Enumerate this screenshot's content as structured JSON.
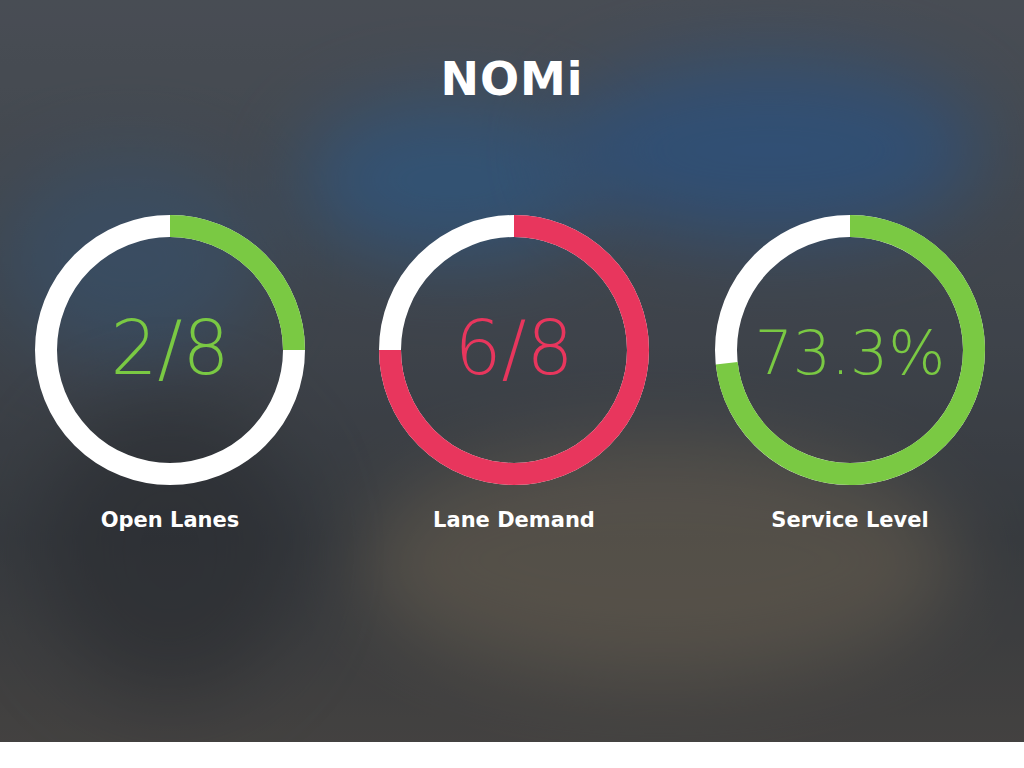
{
  "header": {
    "logo": "NOMi"
  },
  "chart_data": [
    {
      "type": "gauge",
      "title": "Open Lanes",
      "values": [
        2
      ],
      "value_labels": [
        "2/8"
      ],
      "ylim": [
        0,
        8
      ],
      "color": "#7ac943"
    },
    {
      "type": "gauge",
      "title": "Lane Demand",
      "values": [
        6
      ],
      "value_labels": [
        "6/8"
      ],
      "ylim": [
        0,
        8
      ],
      "color": "#e8365d"
    },
    {
      "type": "gauge",
      "title": "Service Level",
      "values": [
        73.3
      ],
      "value_labels": [
        "73.3%"
      ],
      "ylim": [
        0,
        100
      ],
      "color": "#7ac943"
    }
  ]
}
